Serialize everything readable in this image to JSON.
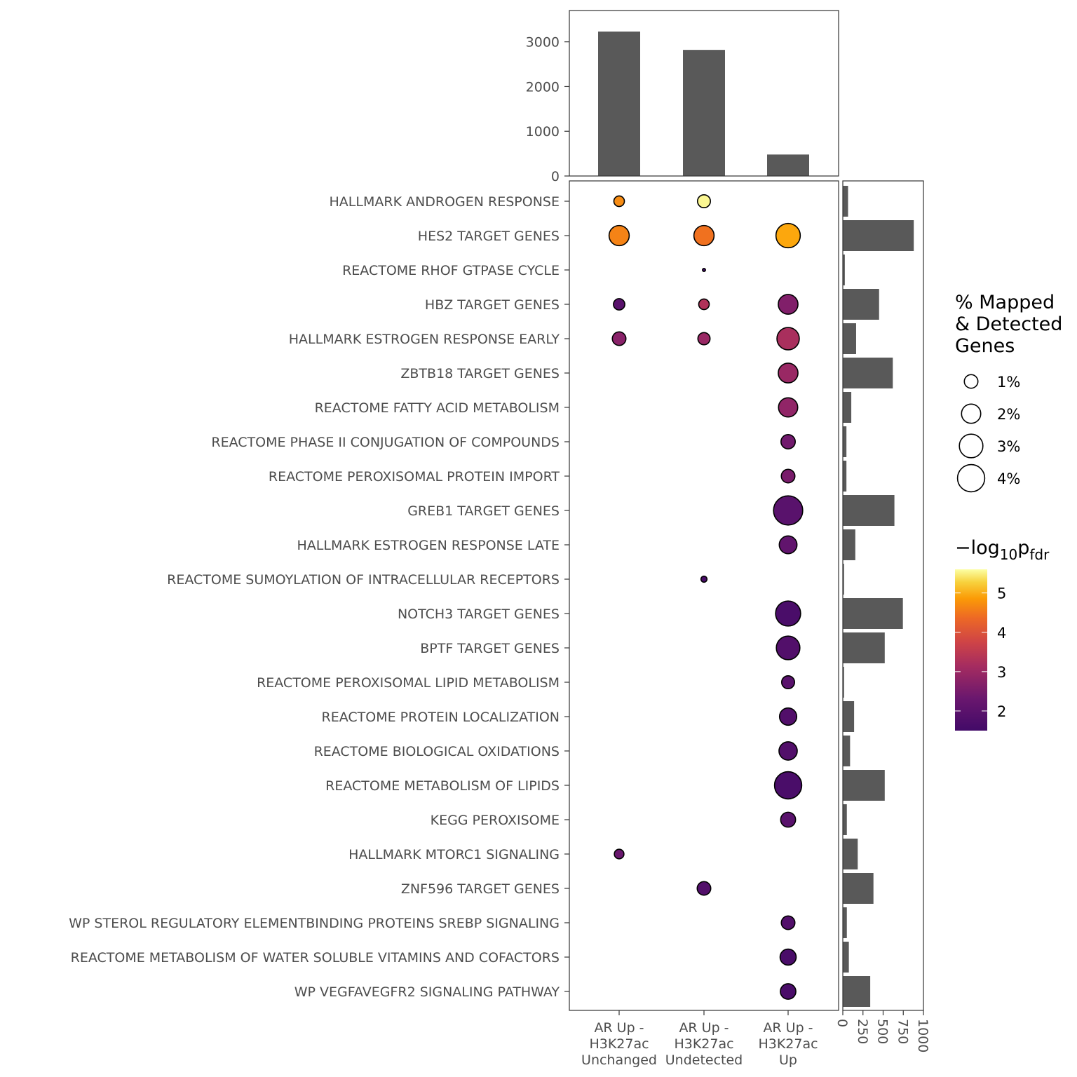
{
  "chart_data": {
    "type": "scatter",
    "top_bar": {
      "type": "bar",
      "categories": [
        "AR Up - H3K27ac Unchanged",
        "AR Up - H3K27ac Undetected",
        "AR Up - H3K27ac Up"
      ],
      "values": [
        3230,
        2820,
        480
      ],
      "ylim": [
        0,
        3700
      ],
      "ticks": [
        "0",
        "1000",
        "2000",
        "3000"
      ]
    },
    "x_categories": [
      [
        "AR Up -",
        "H3K27ac",
        "Unchanged"
      ],
      [
        "AR Up -",
        "H3K27ac",
        "Undetected"
      ],
      [
        "AR Up -",
        "H3K27ac",
        "Up"
      ]
    ],
    "pathways": [
      "HALLMARK ANDROGEN RESPONSE",
      "HES2 TARGET GENES",
      "REACTOME RHOF GTPASE CYCLE",
      "HBZ TARGET GENES",
      "HALLMARK ESTROGEN RESPONSE EARLY",
      "ZBTB18 TARGET GENES",
      "REACTOME FATTY ACID METABOLISM",
      "REACTOME PHASE II CONJUGATION OF COMPOUNDS",
      "REACTOME PEROXISOMAL PROTEIN IMPORT",
      "GREB1 TARGET GENES",
      "HALLMARK ESTROGEN RESPONSE LATE",
      "REACTOME SUMOYLATION OF INTRACELLULAR RECEPTORS",
      "NOTCH3 TARGET GENES",
      "BPTF TARGET GENES",
      "REACTOME PEROXISOMAL LIPID METABOLISM",
      "REACTOME PROTEIN LOCALIZATION",
      "REACTOME BIOLOGICAL OXIDATIONS",
      "REACTOME METABOLISM OF LIPIDS",
      "KEGG PEROXISOME",
      "HALLMARK MTORC1 SIGNALING",
      "ZNF596 TARGET GENES",
      "WP STEROL REGULATORY ELEMENTBINDING PROTEINS SREBP SIGNALING",
      "REACTOME METABOLISM OF WATER SOLUBLE VITAMINS AND COFACTORS",
      "WP VEGFAVEGFR2 SIGNALING PATHWAY"
    ],
    "points": [
      {
        "pathway": 0,
        "group": 0,
        "pct": 0.6,
        "neglog10p": 4.3
      },
      {
        "pathway": 0,
        "group": 1,
        "pct": 0.9,
        "neglog10p": 5.5
      },
      {
        "pathway": 1,
        "group": 0,
        "pct": 2.2,
        "neglog10p": 4.2
      },
      {
        "pathway": 1,
        "group": 1,
        "pct": 2.2,
        "neglog10p": 4.0
      },
      {
        "pathway": 1,
        "group": 2,
        "pct": 3.2,
        "neglog10p": 4.6
      },
      {
        "pathway": 2,
        "group": 1,
        "pct": 0.05,
        "neglog10p": 1.5
      },
      {
        "pathway": 3,
        "group": 0,
        "pct": 0.7,
        "neglog10p": 1.8
      },
      {
        "pathway": 3,
        "group": 1,
        "pct": 0.6,
        "neglog10p": 2.9
      },
      {
        "pathway": 3,
        "group": 2,
        "pct": 2.1,
        "neglog10p": 2.3
      },
      {
        "pathway": 4,
        "group": 0,
        "pct": 1.0,
        "neglog10p": 2.4
      },
      {
        "pathway": 4,
        "group": 1,
        "pct": 0.8,
        "neglog10p": 2.6
      },
      {
        "pathway": 4,
        "group": 2,
        "pct": 2.7,
        "neglog10p": 2.8
      },
      {
        "pathway": 5,
        "group": 2,
        "pct": 2.1,
        "neglog10p": 2.6
      },
      {
        "pathway": 6,
        "group": 2,
        "pct": 2.0,
        "neglog10p": 2.5
      },
      {
        "pathway": 7,
        "group": 2,
        "pct": 1.1,
        "neglog10p": 2.1
      },
      {
        "pathway": 8,
        "group": 2,
        "pct": 1.0,
        "neglog10p": 2.2
      },
      {
        "pathway": 9,
        "group": 2,
        "pct": 4.6,
        "neglog10p": 1.8
      },
      {
        "pathway": 10,
        "group": 2,
        "pct": 1.7,
        "neglog10p": 1.9
      },
      {
        "pathway": 11,
        "group": 1,
        "pct": 0.2,
        "neglog10p": 1.6
      },
      {
        "pathway": 12,
        "group": 2,
        "pct": 3.4,
        "neglog10p": 1.6
      },
      {
        "pathway": 13,
        "group": 2,
        "pct": 3.0,
        "neglog10p": 1.7
      },
      {
        "pathway": 14,
        "group": 2,
        "pct": 0.9,
        "neglog10p": 1.8
      },
      {
        "pathway": 15,
        "group": 2,
        "pct": 1.6,
        "neglog10p": 1.7
      },
      {
        "pathway": 16,
        "group": 2,
        "pct": 1.8,
        "neglog10p": 1.7
      },
      {
        "pathway": 17,
        "group": 2,
        "pct": 4.0,
        "neglog10p": 1.6
      },
      {
        "pathway": 18,
        "group": 2,
        "pct": 1.2,
        "neglog10p": 1.8
      },
      {
        "pathway": 19,
        "group": 0,
        "pct": 0.5,
        "neglog10p": 2.0
      },
      {
        "pathway": 20,
        "group": 1,
        "pct": 1.0,
        "neglog10p": 1.7
      },
      {
        "pathway": 21,
        "group": 2,
        "pct": 1.0,
        "neglog10p": 1.7
      },
      {
        "pathway": 22,
        "group": 2,
        "pct": 1.4,
        "neglog10p": 1.6
      },
      {
        "pathway": 23,
        "group": 2,
        "pct": 1.3,
        "neglog10p": 1.6
      }
    ],
    "right_bar": {
      "type": "bar",
      "values": [
        65,
        880,
        25,
        450,
        165,
        620,
        105,
        45,
        45,
        640,
        155,
        15,
        745,
        520,
        15,
        140,
        90,
        520,
        50,
        185,
        380,
        50,
        75,
        340
      ],
      "xlim": [
        0,
        1000
      ],
      "ticks": [
        "0",
        "250",
        "500",
        "750",
        "1000"
      ]
    },
    "legend_size": {
      "title": [
        "% Mapped",
        "& Detected",
        "Genes"
      ],
      "entries": [
        {
          "label": "1%",
          "pct": 1
        },
        {
          "label": "2%",
          "pct": 2
        },
        {
          "label": "3%",
          "pct": 3
        },
        {
          "label": "4%",
          "pct": 4
        }
      ]
    },
    "legend_color": {
      "title_prefix": "−log",
      "title_sub1": "10",
      "title_main": "p",
      "title_sub2": "fdr",
      "ticks": [
        "2",
        "3",
        "4",
        "5"
      ],
      "range": [
        1.5,
        5.6
      ],
      "colormap": "inferno"
    }
  }
}
